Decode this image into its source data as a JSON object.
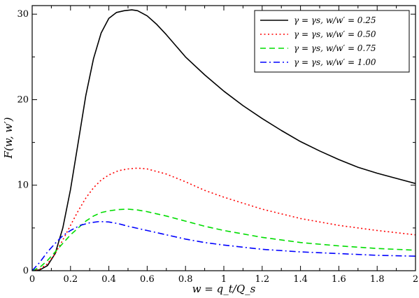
{
  "chart_data": {
    "type": "line",
    "xlabel": "w = q_t/Q_s",
    "ylabel": "F(w, w′)",
    "xlim": [
      0,
      2
    ],
    "ylim": [
      0,
      31
    ],
    "xticks": [
      0,
      0.2,
      0.4,
      0.6,
      0.8,
      1,
      1.2,
      1.4,
      1.6,
      1.8,
      2
    ],
    "xtick_labels": [
      "0",
      "0.2",
      "0.4",
      "0.6",
      "0.8",
      "1",
      "1.2",
      "1.4",
      "1.6",
      "1.8",
      "2"
    ],
    "yticks": [
      0,
      10,
      20,
      30
    ],
    "ytick_labels": [
      "0",
      "10",
      "20",
      "30"
    ],
    "grid": false,
    "legend_position": "top-right",
    "series": [
      {
        "name": "γ = γs, w/w′ = 0.25",
        "color": "#000000",
        "dash": "solid",
        "x": [
          0,
          0.04,
          0.08,
          0.12,
          0.16,
          0.2,
          0.24,
          0.28,
          0.32,
          0.36,
          0.4,
          0.44,
          0.48,
          0.52,
          0.55,
          0.6,
          0.65,
          0.7,
          0.8,
          0.9,
          1.0,
          1.1,
          1.2,
          1.3,
          1.4,
          1.5,
          1.6,
          1.7,
          1.8,
          1.9,
          2.0
        ],
        "y": [
          0,
          0.1,
          0.6,
          2.0,
          5.0,
          9.5,
          15.0,
          20.5,
          24.8,
          27.8,
          29.5,
          30.2,
          30.4,
          30.5,
          30.4,
          29.8,
          28.8,
          27.6,
          25.0,
          22.9,
          21.0,
          19.3,
          17.8,
          16.4,
          15.1,
          14.0,
          13.0,
          12.1,
          11.4,
          10.8,
          10.2
        ]
      },
      {
        "name": "γ = γs, w/w′ = 0.50",
        "color": "#ff0000",
        "dash": "dotted",
        "x": [
          0,
          0.04,
          0.08,
          0.12,
          0.16,
          0.2,
          0.24,
          0.28,
          0.32,
          0.36,
          0.4,
          0.45,
          0.5,
          0.55,
          0.6,
          0.7,
          0.8,
          0.9,
          1.0,
          1.2,
          1.4,
          1.6,
          1.8,
          2.0
        ],
        "y": [
          0,
          0.2,
          0.8,
          2.0,
          3.6,
          5.3,
          7.0,
          8.5,
          9.7,
          10.6,
          11.2,
          11.7,
          11.9,
          12.0,
          11.9,
          11.3,
          10.4,
          9.4,
          8.6,
          7.2,
          6.1,
          5.3,
          4.7,
          4.2
        ]
      },
      {
        "name": "γ = γs, w/w′ = 0.75",
        "color": "#00dd00",
        "dash": "dashed",
        "x": [
          0,
          0.04,
          0.08,
          0.12,
          0.16,
          0.2,
          0.24,
          0.28,
          0.32,
          0.36,
          0.4,
          0.45,
          0.5,
          0.55,
          0.6,
          0.7,
          0.8,
          0.9,
          1.0,
          1.2,
          1.4,
          1.6,
          1.8,
          2.0
        ],
        "y": [
          0,
          0.4,
          1.2,
          2.2,
          3.2,
          4.2,
          5.0,
          5.8,
          6.4,
          6.8,
          7.0,
          7.15,
          7.2,
          7.1,
          6.9,
          6.4,
          5.8,
          5.2,
          4.7,
          3.9,
          3.3,
          2.9,
          2.6,
          2.4
        ]
      },
      {
        "name": "γ = γs, w/w′ = 1.00",
        "color": "#0000ff",
        "dash": "dashdot",
        "x": [
          0,
          0.04,
          0.08,
          0.12,
          0.16,
          0.2,
          0.25,
          0.3,
          0.35,
          0.4,
          0.45,
          0.5,
          0.6,
          0.7,
          0.8,
          0.9,
          1.0,
          1.2,
          1.4,
          1.6,
          1.8,
          2.0
        ],
        "y": [
          0,
          1.0,
          2.2,
          3.2,
          4.1,
          4.7,
          5.3,
          5.6,
          5.75,
          5.7,
          5.5,
          5.2,
          4.7,
          4.2,
          3.7,
          3.3,
          3.0,
          2.5,
          2.2,
          2.0,
          1.8,
          1.7
        ]
      }
    ]
  }
}
